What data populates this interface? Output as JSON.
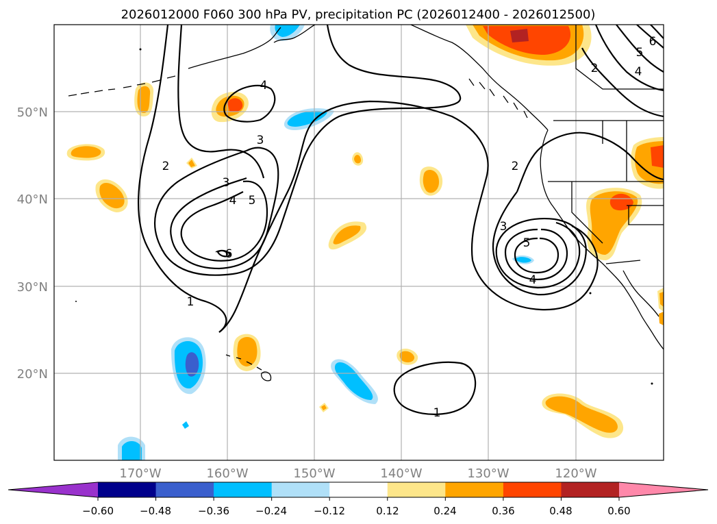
{
  "title": "2026012000 F060 300 hPa PV, precipitation PC (2026012400 - 2026012500)",
  "axes": {
    "lat_labels": [
      "50°N",
      "40°N",
      "30°N",
      "20°N"
    ],
    "lon_labels": [
      "170°W",
      "160°W",
      "150°W",
      "140°W",
      "130°W",
      "120°W"
    ]
  },
  "colorbar": {
    "tick_labels": [
      "−0.60",
      "−0.48",
      "−0.36",
      "−0.24",
      "−0.12",
      "0.12",
      "0.24",
      "0.36",
      "0.48",
      "0.60"
    ],
    "colors": [
      "#9932cc",
      "#00008b",
      "#3a5fcd",
      "#00bfff",
      "#b0e0f8",
      "#ffffff",
      "#fde68a",
      "#ffa500",
      "#ff4500",
      "#b22222",
      "#ff88aa"
    ]
  },
  "contour_labels": [
    "4",
    "3",
    "2",
    "3",
    "4",
    "5",
    "6",
    "1",
    "2",
    "3",
    "5",
    "4",
    "1",
    "2",
    "4",
    "5",
    "6"
  ]
}
